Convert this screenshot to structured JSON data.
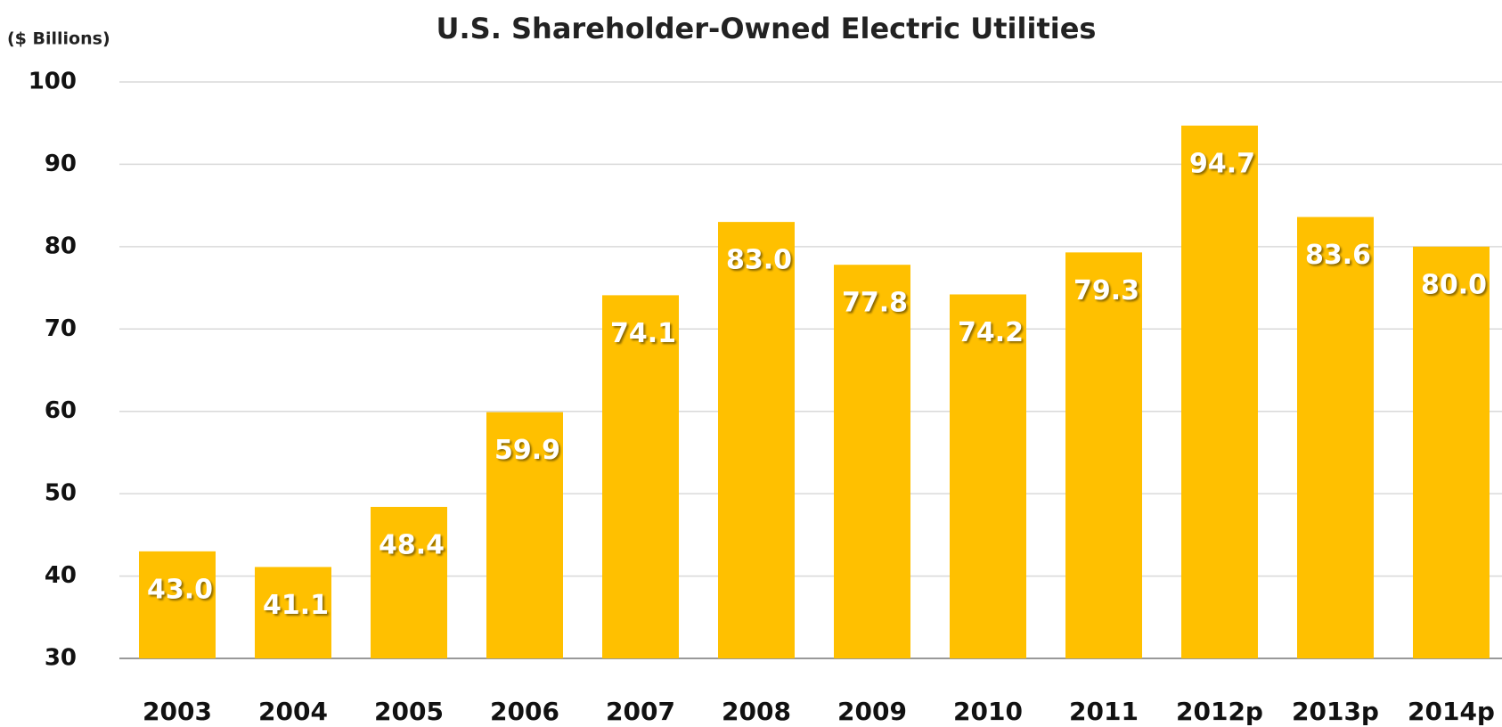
{
  "chart_data": {
    "type": "bar",
    "title": "U.S. Shareholder-Owned Electric Utilities",
    "y_label": "($ Billions)",
    "categories": [
      "2003",
      "2004",
      "2005",
      "2006",
      "2007",
      "2008",
      "2009",
      "2010",
      "2011",
      "2012p",
      "2013p",
      "2014p"
    ],
    "values": [
      43.0,
      41.1,
      48.4,
      59.9,
      74.1,
      83.0,
      77.8,
      74.2,
      79.3,
      94.7,
      83.6,
      80.0
    ],
    "value_labels": [
      "43.0",
      "41.1",
      "48.4",
      "59.9",
      "74.1",
      "83.0",
      "77.8",
      "74.2",
      "79.3",
      "94.7",
      "83.6",
      "80.0"
    ],
    "color": "#FFC000",
    "ylim": [
      30,
      100
    ],
    "yticks": [
      30,
      40,
      50,
      60,
      70,
      80,
      90,
      100
    ],
    "grid": true
  }
}
